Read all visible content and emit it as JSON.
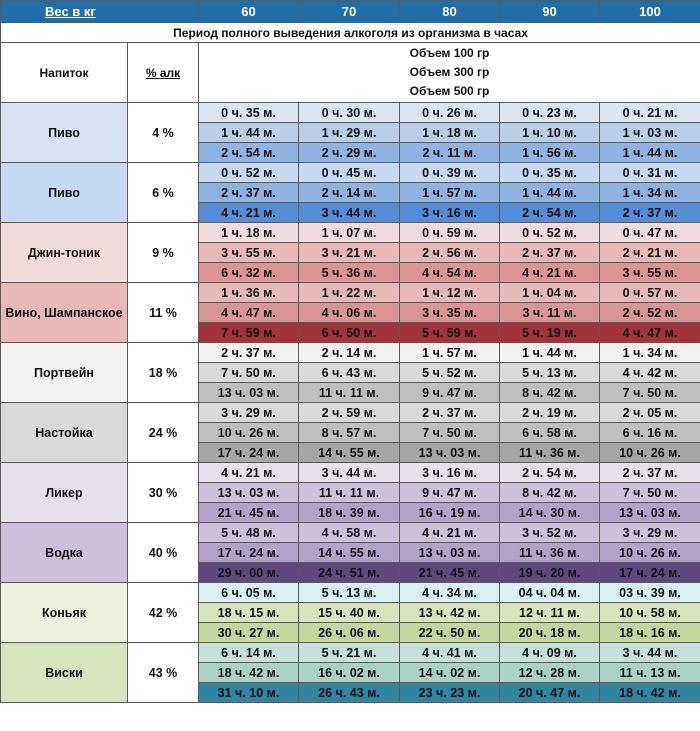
{
  "header": {
    "weight_label": "Вес в кг",
    "weights": [
      "60",
      "70",
      "80",
      "90",
      "100"
    ],
    "header_color": "#1f6ea8"
  },
  "period_title": "Период полного выведения алкоголя из организма в часах",
  "column_labels": {
    "drink": "Напиток",
    "alcohol": "% алк"
  },
  "volumes": [
    "Объем 100 гр",
    "Объем 300 гр",
    "Объем 500 гр"
  ],
  "drinks": [
    {
      "name": "Пиво",
      "alcohol": "4 %",
      "label_color": "#d7e3f3",
      "row_colors": [
        "#dbe5f1",
        "#b9cde5",
        "#8eb4e3"
      ],
      "rows": [
        [
          "0 ч. 35 м.",
          "0 ч. 30 м.",
          "0 ч. 26 м.",
          "0 ч. 23 м.",
          "0 ч. 21 м."
        ],
        [
          "1 ч. 44 м.",
          "1 ч. 29 м.",
          "1 ч. 18 м.",
          "1 ч. 10 м.",
          "1 ч. 03 м."
        ],
        [
          "2 ч. 54 м.",
          "2 ч. 29 м.",
          "2 ч. 11 м.",
          "1 ч. 56 м.",
          "1 ч. 44 м."
        ]
      ]
    },
    {
      "name": "Пиво",
      "alcohol": "6 %",
      "label_color": "#c5d9f1",
      "row_colors": [
        "#c5d9f1",
        "#8db3e2",
        "#548dd4"
      ],
      "rows": [
        [
          "0 ч. 52 м.",
          "0 ч. 45 м.",
          "0 ч. 39 м.",
          "0 ч. 35 м.",
          "0 ч. 31 м."
        ],
        [
          "2 ч. 37 м.",
          "2 ч. 14 м.",
          "1 ч. 57 м.",
          "1 ч. 44 м.",
          "1 ч. 34 м."
        ],
        [
          "4 ч. 21 м.",
          "3 ч. 44 м.",
          "3 ч. 16 м.",
          "2 ч. 54 м.",
          "2 ч. 37 м."
        ]
      ]
    },
    {
      "name": "Джин-тоник",
      "alcohol": "9 %",
      "label_color": "#f2dcdb",
      "row_colors": [
        "#f2dcdb",
        "#e6b9b8",
        "#da9694"
      ],
      "rows": [
        [
          "1 ч. 18 м.",
          "1 ч. 07 м.",
          "0 ч. 59 м.",
          "0 ч. 52 м.",
          "0 ч. 47 м."
        ],
        [
          "3 ч. 55 м.",
          "3 ч. 21 м.",
          "2 ч. 56 м.",
          "2 ч. 37 м.",
          "2 ч. 21 м."
        ],
        [
          "6 ч. 32 м.",
          "5 ч. 36 м.",
          "4 ч. 54 м.",
          "4 ч. 21 м.",
          "3 ч. 55 м."
        ]
      ]
    },
    {
      "name": "Вино, Шампанское",
      "alcohol": "11 %",
      "label_color": "#e6b9b8",
      "row_colors": [
        "#e6b9b8",
        "#d99694",
        "#a0333b"
      ],
      "rows": [
        [
          "1 ч. 36 м.",
          "1 ч. 22 м.",
          "1 ч. 12 м.",
          "1 ч. 04 м.",
          "0 ч. 57 м."
        ],
        [
          "4 ч. 47 м.",
          "4 ч. 06 м.",
          "3 ч. 35 м.",
          "3 ч. 11 м.",
          "2 ч. 52 м."
        ],
        [
          "7 ч. 59 м.",
          "6 ч. 50 м.",
          "5 ч. 59 м.",
          "5 ч. 19 м.",
          "4 ч. 47 м."
        ]
      ]
    },
    {
      "name": "Портвейн",
      "alcohol": "18 %",
      "label_color": "#f2f2f2",
      "row_colors": [
        "#f2f2f2",
        "#d9d9d9",
        "#bfbfbf"
      ],
      "rows": [
        [
          "2 ч. 37 м.",
          "2 ч. 14 м.",
          "1 ч. 57 м.",
          "1 ч. 44 м.",
          "1 ч. 34 м."
        ],
        [
          "7 ч. 50 м.",
          "6 ч. 43 м.",
          "5 ч. 52 м.",
          "5 ч. 13 м.",
          "4 ч. 42 м."
        ],
        [
          "13 ч. 03 м.",
          "11 ч. 11 м.",
          "9 ч. 47 м.",
          "8 ч. 42 м.",
          "7 ч. 50 м."
        ]
      ]
    },
    {
      "name": "Настойка",
      "alcohol": "24 %",
      "label_color": "#d9d9d9",
      "row_colors": [
        "#d9d9d9",
        "#bfbfbf",
        "#a6a6a6"
      ],
      "rows": [
        [
          "3 ч. 29 м.",
          "2 ч. 59 м.",
          "2 ч. 37 м.",
          "2 ч. 19 м.",
          "2 ч. 05 м."
        ],
        [
          "10 ч. 26 м.",
          "8 ч. 57 м.",
          "7 ч. 50 м.",
          "6 ч. 58 м.",
          "6 ч. 16 м."
        ],
        [
          "17 ч. 24 м.",
          "14 ч. 55 м.",
          "13 ч. 03 м.",
          "11 ч. 36 м.",
          "10 ч. 26 м."
        ]
      ]
    },
    {
      "name": "Ликер",
      "alcohol": "30 %",
      "label_color": "#e5e0ec",
      "row_colors": [
        "#e5e0ec",
        "#ccc0da",
        "#b3a2c7"
      ],
      "rows": [
        [
          "4 ч. 21 м.",
          "3 ч. 44 м.",
          "3 ч. 16 м.",
          "2 ч. 54 м.",
          "2 ч. 37 м."
        ],
        [
          "13 ч. 03 м.",
          "11 ч. 11 м.",
          "9 ч. 47 м.",
          "8 ч. 42 м.",
          "7 ч. 50 м."
        ],
        [
          "21 ч. 45 м.",
          "18 ч. 39 м.",
          "16 ч. 19 м.",
          "14 ч. 30 м.",
          "13 ч. 03 м."
        ]
      ]
    },
    {
      "name": "Водка",
      "alcohol": "40 %",
      "label_color": "#ccc0da",
      "row_colors": [
        "#ccc0da",
        "#b3a2c7",
        "#5f497a"
      ],
      "rows": [
        [
          "5 ч. 48 м.",
          "4 ч. 58 м.",
          "4 ч. 21 м.",
          "3 ч. 52 м.",
          "3 ч. 29 м."
        ],
        [
          "17 ч. 24 м.",
          "14 ч. 55 м.",
          "13 ч. 03 м.",
          "11 ч. 36 м.",
          "10 ч. 26 м."
        ],
        [
          "29 ч. 00 м.",
          "24 ч. 51 м.",
          "21 ч. 45 м.",
          "19 ч. 20 м.",
          "17 ч. 24 м."
        ]
      ]
    },
    {
      "name": "Коньяк",
      "alcohol": "42 %",
      "label_color": "#ebf1de",
      "row_colors": [
        "#dbeef4",
        "#d7e4bd",
        "#c3d69b"
      ],
      "rows": [
        [
          "6 ч. 05 м.",
          "5 ч. 13 м.",
          "4 ч. 34 м.",
          "04 ч. 04 м.",
          "03 ч. 39 м."
        ],
        [
          "18 ч. 15 м.",
          "15 ч. 40 м.",
          "13 ч. 42 м.",
          "12 ч. 11 м.",
          "10 ч. 58 м."
        ],
        [
          "30 ч. 27 м.",
          "26 ч. 06 м.",
          "22 ч. 50 м.",
          "20 ч. 18 м.",
          "18 ч. 16 м."
        ]
      ]
    },
    {
      "name": "Виски",
      "alcohol": "43 %",
      "label_color": "#d7e4bd",
      "row_colors": [
        "#c4e0d8",
        "#a9d2c4",
        "#31859c"
      ],
      "rows": [
        [
          "6 ч. 14 м.",
          "5 ч. 21 м.",
          "4 ч. 41 м.",
          "4 ч. 09 м.",
          "3 ч. 44 м."
        ],
        [
          "18 ч. 42 м.",
          "16 ч. 02 м.",
          "14 ч. 02 м.",
          "12 ч. 28 м.",
          "11 ч. 13 м."
        ],
        [
          "31 ч. 10 м.",
          "26 ч. 43 м.",
          "23 ч. 23 м.",
          "20 ч. 47 м.",
          "18 ч. 42 м."
        ]
      ]
    }
  ]
}
